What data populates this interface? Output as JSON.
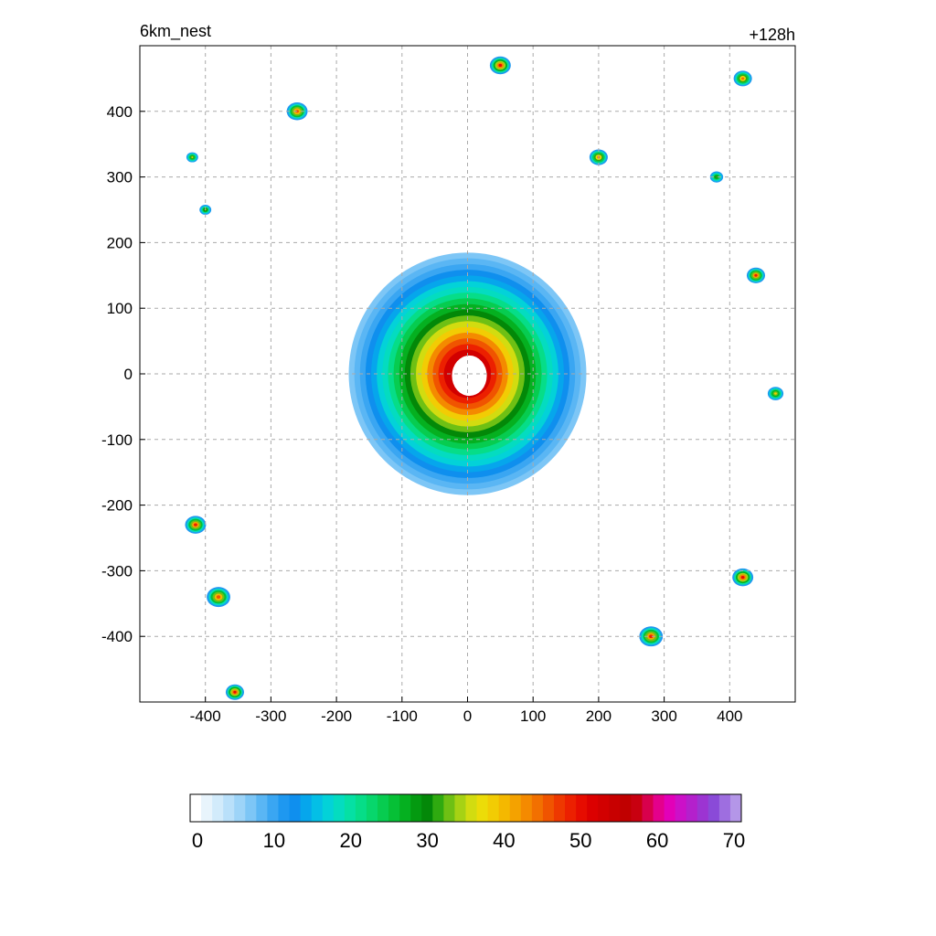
{
  "chart_data": {
    "type": "heatmap",
    "title_left": "6km_nest",
    "title_right": "+128h",
    "xlabel": "",
    "ylabel": "",
    "xlim": [
      -500,
      500
    ],
    "ylim": [
      -500,
      500
    ],
    "xticks": [
      -400,
      -300,
      -200,
      -100,
      0,
      100,
      200,
      300,
      400
    ],
    "yticks": [
      -400,
      -300,
      -200,
      -100,
      0,
      100,
      200,
      300,
      400
    ],
    "grid": true,
    "colorbar": {
      "min": 0,
      "max": 70,
      "ticks": [
        0,
        10,
        20,
        30,
        40,
        50,
        60,
        70
      ],
      "colors": [
        "#ffffff",
        "#e8f4fc",
        "#d2ebfb",
        "#b9e0fa",
        "#9dd4f8",
        "#7dc6f6",
        "#5ab6f4",
        "#3aa6f2",
        "#1e98f0",
        "#0f8fee",
        "#06a6ec",
        "#04bfe6",
        "#03d2d8",
        "#04dcc0",
        "#05e0a4",
        "#06dd88",
        "#07d66c",
        "#07cc50",
        "#06c036",
        "#05b020",
        "#049a10",
        "#038808",
        "#2faa10",
        "#6ec014",
        "#a6d214",
        "#d2dc10",
        "#ecdc08",
        "#f2cc04",
        "#f4b800",
        "#f4a200",
        "#f48a00",
        "#f27000",
        "#f05400",
        "#ee3800",
        "#ec2000",
        "#e60c00",
        "#dc0000",
        "#d20000",
        "#c80000",
        "#c00000",
        "#c80010",
        "#d8004c",
        "#e4008c",
        "#e200b8",
        "#cc10c8",
        "#b420cc",
        "#9c34d2",
        "#8a4ad8",
        "#9e6ee0",
        "#b496e8"
      ]
    },
    "features": [
      {
        "kind": "ring",
        "x": 0,
        "y": 0,
        "inner": 28,
        "outer": 185,
        "peak": 52
      },
      {
        "kind": "blob",
        "x": -380,
        "y": -340,
        "r": 18,
        "peak": 46
      },
      {
        "kind": "blob",
        "x": -415,
        "y": -230,
        "r": 16,
        "peak": 48
      },
      {
        "kind": "blob",
        "x": -355,
        "y": -485,
        "r": 14,
        "peak": 50
      },
      {
        "kind": "blob",
        "x": 280,
        "y": -400,
        "r": 18,
        "peak": 48
      },
      {
        "kind": "blob",
        "x": 420,
        "y": -310,
        "r": 16,
        "peak": 50
      },
      {
        "kind": "blob",
        "x": 440,
        "y": 150,
        "r": 14,
        "peak": 48
      },
      {
        "kind": "blob",
        "x": 50,
        "y": 470,
        "r": 16,
        "peak": 50
      },
      {
        "kind": "blob",
        "x": -260,
        "y": 400,
        "r": 16,
        "peak": 46
      },
      {
        "kind": "blob",
        "x": 200,
        "y": 330,
        "r": 14,
        "peak": 44
      },
      {
        "kind": "blob",
        "x": 420,
        "y": 450,
        "r": 14,
        "peak": 44
      },
      {
        "kind": "blob",
        "x": 470,
        "y": -30,
        "r": 12,
        "peak": 38
      },
      {
        "kind": "blob",
        "x": 380,
        "y": 300,
        "r": 10,
        "peak": 32
      },
      {
        "kind": "blob",
        "x": -400,
        "y": 250,
        "r": 9,
        "peak": 34
      },
      {
        "kind": "blob",
        "x": -420,
        "y": 330,
        "r": 9,
        "peak": 36
      }
    ]
  }
}
